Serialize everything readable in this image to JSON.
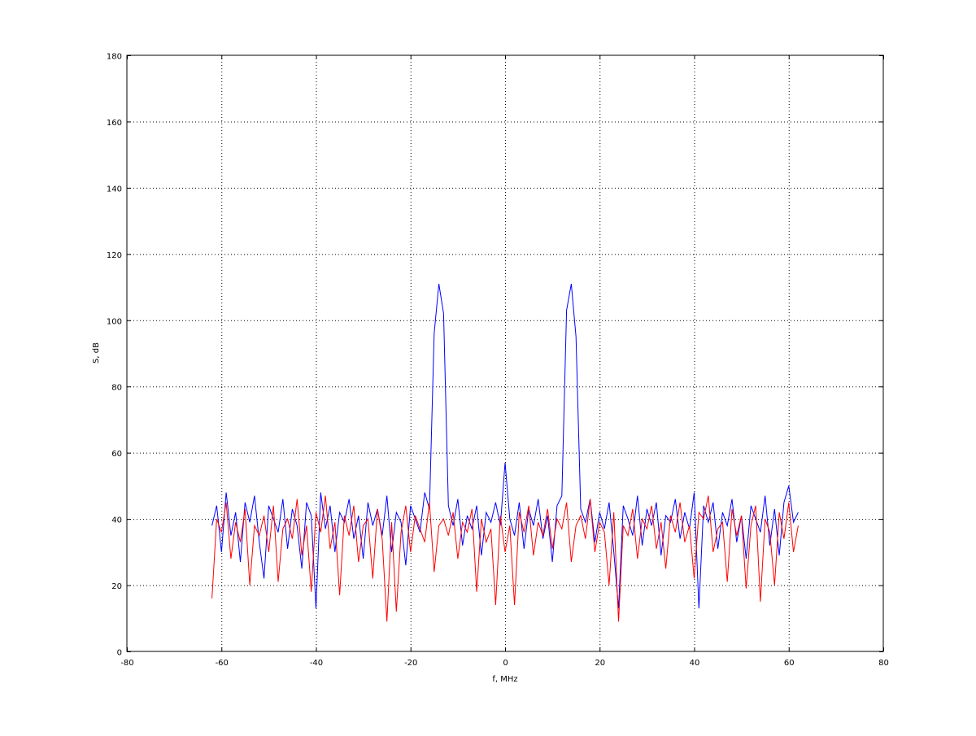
{
  "chart_data": {
    "type": "line",
    "title": "",
    "xlabel": "f, MHz",
    "ylabel": "S, dB",
    "xlim": [
      -80,
      80
    ],
    "ylim": [
      0,
      180
    ],
    "xticks": [
      -80,
      -60,
      -40,
      -20,
      0,
      20,
      40,
      60,
      80
    ],
    "yticks": [
      0,
      20,
      40,
      60,
      80,
      100,
      120,
      140,
      160,
      180
    ],
    "grid": true,
    "x": [
      -62,
      -61,
      -60,
      -59,
      -58,
      -57,
      -56,
      -55,
      -54,
      -53,
      -52,
      -51,
      -50,
      -49,
      -48,
      -47,
      -46,
      -45,
      -44,
      -43,
      -42,
      -41,
      -40,
      -39,
      -38,
      -37,
      -36,
      -35,
      -34,
      -33,
      -32,
      -31,
      -30,
      -29,
      -28,
      -27,
      -26,
      -25,
      -24,
      -23,
      -22,
      -21,
      -20,
      -19,
      -18,
      -17,
      -16,
      -15,
      -14,
      -13,
      -12,
      -11,
      -10,
      -9,
      -8,
      -7,
      -6,
      -5,
      -4,
      -3,
      -2,
      -1,
      0,
      1,
      2,
      3,
      4,
      5,
      6,
      7,
      8,
      9,
      10,
      11,
      12,
      13,
      14,
      15,
      16,
      17,
      18,
      19,
      20,
      21,
      22,
      23,
      24,
      25,
      26,
      27,
      28,
      29,
      30,
      31,
      32,
      33,
      34,
      35,
      36,
      37,
      38,
      39,
      40,
      41,
      42,
      43,
      44,
      45,
      46,
      47,
      48,
      49,
      50,
      51,
      52,
      53,
      54,
      55,
      56,
      57,
      58,
      59,
      60,
      61,
      62
    ],
    "series": [
      {
        "color": "#0000ff",
        "values": [
          38,
          44,
          30,
          48,
          35,
          42,
          27,
          45,
          39,
          47,
          33,
          22,
          44,
          40,
          36,
          46,
          31,
          43,
          38,
          25,
          45,
          41,
          13,
          48,
          37,
          44,
          30,
          42,
          39,
          46,
          34,
          41,
          28,
          45,
          38,
          43,
          35,
          47,
          30,
          42,
          39,
          26,
          44,
          40,
          36,
          48,
          43,
          96,
          111,
          102,
          44,
          38,
          46,
          32,
          41,
          37,
          44,
          29,
          42,
          39,
          45,
          38,
          57,
          40,
          35,
          45,
          31,
          43,
          38,
          46,
          34,
          41,
          27,
          44,
          47,
          103,
          111,
          95,
          43,
          39,
          46,
          33,
          42,
          37,
          45,
          30,
          13,
          44,
          40,
          35,
          47,
          32,
          43,
          38,
          45,
          29,
          41,
          39,
          46,
          34,
          42,
          37,
          48,
          13,
          44,
          39,
          45,
          31,
          42,
          38,
          46,
          33,
          41,
          28,
          44,
          40,
          36,
          47,
          32,
          43,
          29,
          45,
          50,
          39,
          42
        ]
      },
      {
        "color": "#ff0000",
        "values": [
          16,
          40,
          36,
          45,
          28,
          39,
          33,
          43,
          20,
          38,
          35,
          41,
          30,
          44,
          21,
          37,
          40,
          34,
          46,
          29,
          38,
          18,
          42,
          36,
          47,
          31,
          39,
          17,
          41,
          35,
          44,
          27,
          38,
          40,
          22,
          43,
          34,
          9,
          39,
          12,
          36,
          44,
          30,
          41,
          37,
          33,
          45,
          24,
          38,
          40,
          35,
          42,
          28,
          39,
          36,
          43,
          18,
          40,
          33,
          37,
          14,
          41,
          30,
          38,
          14,
          42,
          36,
          44,
          29,
          39,
          35,
          43,
          31,
          40,
          37,
          45,
          27,
          38,
          41,
          34,
          46,
          30,
          39,
          36,
          20,
          42,
          9,
          38,
          35,
          43,
          28,
          40,
          37,
          44,
          31,
          39,
          25,
          41,
          36,
          45,
          33,
          38,
          22,
          42,
          40,
          47,
          30,
          37,
          39,
          21,
          43,
          35,
          41,
          19,
          38,
          44,
          15,
          40,
          36,
          20,
          42,
          34,
          45,
          30,
          38
        ]
      }
    ]
  }
}
